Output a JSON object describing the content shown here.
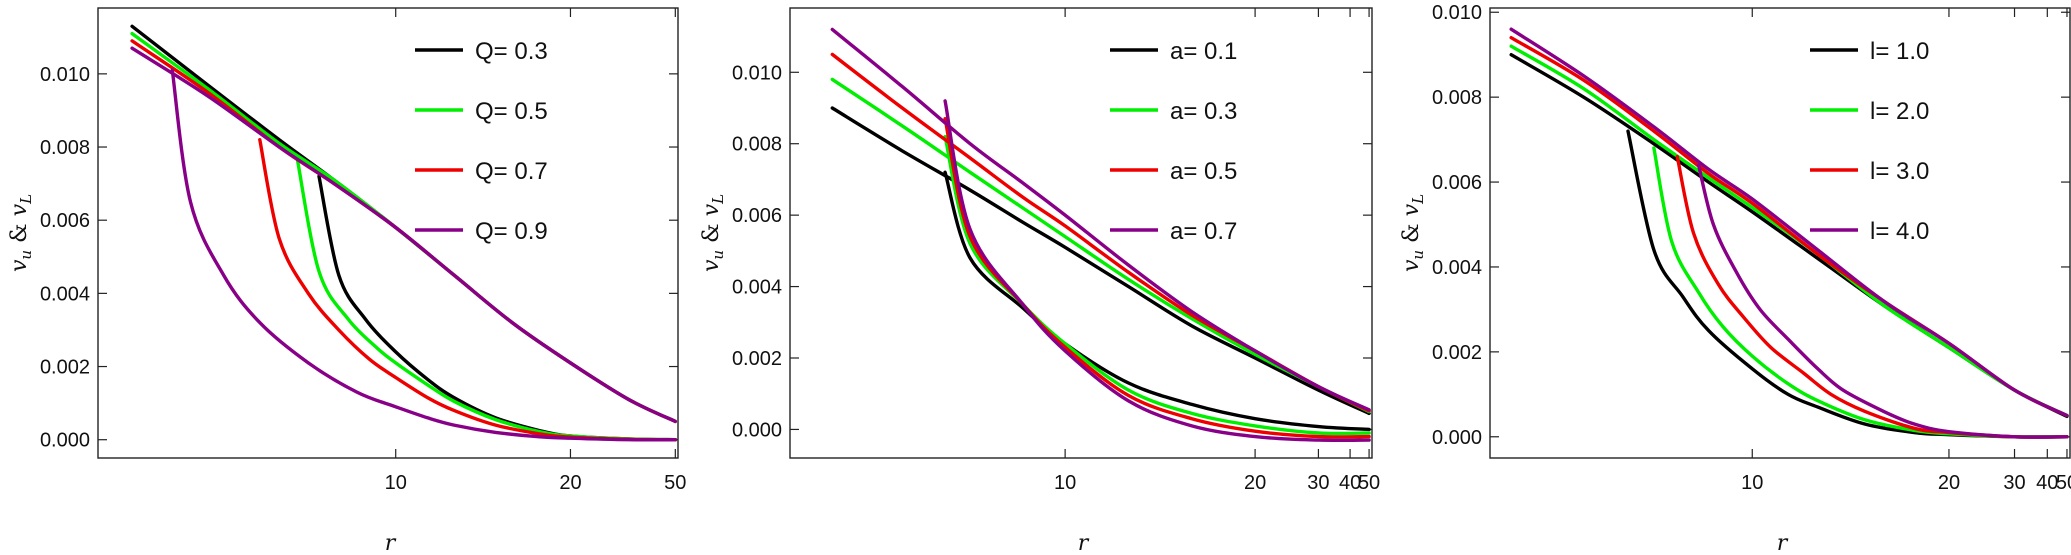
{
  "chart_data": [
    {
      "type": "line",
      "xlabel": "r",
      "ylabel": "v_u & v_L",
      "xscale": "reciprocal",
      "xlim": [
        5.4,
        52
      ],
      "xticks": [
        10,
        20,
        50
      ],
      "ylim": [
        -0.0005,
        0.0118
      ],
      "yticks": [
        0.0,
        0.002,
        0.004,
        0.006,
        0.008,
        0.01
      ],
      "ytick_labels": [
        "0.000",
        "0.002",
        "0.004",
        "0.006",
        "0.008",
        "0.010"
      ],
      "legend_position": "top-right",
      "grid": false,
      "series": [
        {
          "name": "Q= 0.3",
          "color": "#000000",
          "upper": {
            "r": [
              5.7,
              6.5,
              7.5,
              8.5,
              10,
              12,
              15,
              20,
              30,
              50
            ],
            "v": [
              0.0113,
              0.0097,
              0.0082,
              0.0071,
              0.0058,
              0.0045,
              0.0032,
              0.0021,
              0.0011,
              0.0005
            ]
          },
          "lower": {
            "r": [
              8.2,
              8.6,
              9.2,
              10,
              11,
              12,
              14,
              17,
              20,
              30,
              50
            ],
            "v": [
              0.0072,
              0.0045,
              0.0033,
              0.0024,
              0.00165,
              0.00115,
              0.0006,
              0.00025,
              0.0001,
              2e-05,
              0.0
            ]
          }
        },
        {
          "name": "Q= 0.5",
          "color": "#00ee00",
          "upper": {
            "r": [
              5.7,
              6.5,
              7.5,
              8.5,
              10,
              12,
              15,
              20,
              30,
              50
            ],
            "v": [
              0.0111,
              0.0096,
              0.0081,
              0.0071,
              0.0058,
              0.0045,
              0.0032,
              0.0021,
              0.0011,
              0.0005
            ]
          },
          "lower": {
            "r": [
              7.8,
              8.2,
              8.8,
              9.5,
              10,
              11,
              12,
              14,
              17,
              20,
              30,
              50
            ],
            "v": [
              0.0077,
              0.0046,
              0.0033,
              0.0025,
              0.0021,
              0.0015,
              0.00105,
              0.00055,
              0.00022,
              0.0001,
              2e-05,
              0.0
            ]
          }
        },
        {
          "name": "Q= 0.7",
          "color": "#ee0000",
          "upper": {
            "r": [
              5.7,
              6.5,
              7.5,
              8.5,
              10,
              12,
              15,
              20,
              30,
              50
            ],
            "v": [
              0.0109,
              0.0095,
              0.008,
              0.007,
              0.0058,
              0.0045,
              0.0032,
              0.0021,
              0.0011,
              0.0005
            ]
          },
          "lower": {
            "r": [
              7.2,
              7.5,
              8,
              8.6,
              9.3,
              10,
              11,
              12,
              14,
              17,
              20,
              30,
              50
            ],
            "v": [
              0.0082,
              0.0055,
              0.004,
              0.003,
              0.0022,
              0.0017,
              0.00115,
              0.0008,
              0.0004,
              0.00016,
              7e-05,
              1e-05,
              0.0
            ]
          }
        },
        {
          "name": "Q= 0.9",
          "color": "#880088",
          "upper": {
            "r": [
              5.7,
              6.5,
              7.5,
              8.5,
              10,
              12,
              15,
              20,
              30,
              50
            ],
            "v": [
              0.0107,
              0.0094,
              0.008,
              0.007,
              0.0058,
              0.0045,
              0.0032,
              0.0021,
              0.0011,
              0.0005
            ]
          },
          "lower": {
            "r": [
              6.1,
              6.3,
              6.7,
              7.2,
              8,
              9,
              10,
              11,
              12,
              14,
              17,
              20,
              30,
              50
            ],
            "v": [
              0.0101,
              0.0065,
              0.0045,
              0.0032,
              0.0021,
              0.0013,
              0.0009,
              0.0006,
              0.0004,
              0.0002,
              8e-05,
              4e-05,
              0.0,
              0.0
            ]
          }
        }
      ]
    },
    {
      "type": "line",
      "xlabel": "r",
      "ylabel": "v_u & v_L",
      "xscale": "reciprocal",
      "xlim": [
        5.8,
        52
      ],
      "xticks": [
        10,
        20,
        30,
        40,
        50
      ],
      "ylim": [
        -0.0008,
        0.0118
      ],
      "yticks": [
        0.0,
        0.002,
        0.004,
        0.006,
        0.008,
        0.01
      ],
      "ytick_labels": [
        "0.000",
        "0.002",
        "0.004",
        "0.006",
        "0.008",
        "0.010"
      ],
      "legend_position": "top-right",
      "grid": false,
      "series": [
        {
          "name": "a= 0.1",
          "color": "#000000",
          "upper": {
            "r": [
              6.2,
              7,
              8,
              9,
              10,
              12,
              15,
              20,
              30,
              50
            ],
            "v": [
              0.009,
              0.0078,
              0.0067,
              0.0058,
              0.0051,
              0.004,
              0.0029,
              0.002,
              0.0011,
              0.00045
            ]
          },
          "lower": {
            "r": [
              7.6,
              8,
              9,
              10,
              12,
              15,
              20,
              30,
              50
            ],
            "v": [
              0.0072,
              0.0048,
              0.0034,
              0.0024,
              0.0013,
              0.0007,
              0.0003,
              8e-05,
              0.0
            ]
          }
        },
        {
          "name": "a= 0.3",
          "color": "#00ee00",
          "upper": {
            "r": [
              6.2,
              7,
              8,
              9,
              10,
              12,
              15,
              20,
              30,
              50
            ],
            "v": [
              0.0098,
              0.0085,
              0.0072,
              0.0062,
              0.0054,
              0.0042,
              0.0031,
              0.0021,
              0.0012,
              0.0005
            ]
          },
          "lower": {
            "r": [
              7.6,
              8,
              9,
              10,
              12,
              15,
              20,
              30,
              50
            ],
            "v": [
              0.0082,
              0.0052,
              0.0035,
              0.0024,
              0.0011,
              0.00045,
              0.0001,
              -0.0001,
              -0.0001
            ]
          }
        },
        {
          "name": "a= 0.5",
          "color": "#ee0000",
          "upper": {
            "r": [
              6.2,
              7,
              8,
              9,
              10,
              12,
              15,
              20,
              30,
              50
            ],
            "v": [
              0.0105,
              0.009,
              0.0076,
              0.0065,
              0.0057,
              0.0044,
              0.0032,
              0.0022,
              0.0012,
              0.00052
            ]
          },
          "lower": {
            "r": [
              7.6,
              8,
              9,
              10,
              12,
              15,
              20,
              30,
              50
            ],
            "v": [
              0.0087,
              0.0054,
              0.0035,
              0.0023,
              0.00095,
              0.0003,
              -5e-05,
              -0.0002,
              -0.0002
            ]
          }
        },
        {
          "name": "a= 0.7",
          "color": "#880088",
          "upper": {
            "r": [
              6.2,
              7,
              8,
              9,
              10,
              12,
              15,
              20,
              30,
              50
            ],
            "v": [
              0.0112,
              0.0096,
              0.008,
              0.0069,
              0.006,
              0.0046,
              0.0033,
              0.0022,
              0.0012,
              0.00055
            ]
          },
          "lower": {
            "r": [
              7.6,
              8,
              9,
              10,
              12,
              15,
              20,
              30,
              50
            ],
            "v": [
              0.0092,
              0.0056,
              0.0035,
              0.0022,
              0.0008,
              0.0001,
              -0.0002,
              -0.0003,
              -0.0003
            ]
          }
        }
      ]
    },
    {
      "type": "line",
      "xlabel": "r",
      "ylabel": "v_u & v_L",
      "xscale": "reciprocal",
      "xlim": [
        6.0,
        52
      ],
      "xticks": [
        10,
        20,
        30,
        40,
        50
      ],
      "ylim": [
        -0.0005,
        0.0101
      ],
      "yticks": [
        0.0,
        0.002,
        0.004,
        0.006,
        0.008,
        0.01
      ],
      "ytick_labels": [
        "0.000",
        "0.002",
        "0.004",
        "0.006",
        "0.008",
        "0.010"
      ],
      "legend_position": "top-right",
      "grid": false,
      "series": [
        {
          "name": "l= 1.0",
          "color": "#000000",
          "upper": {
            "r": [
              6.2,
              7,
              8,
              9,
              10,
              12,
              15,
              20,
              30,
              50
            ],
            "v": [
              0.009,
              0.008,
              0.0069,
              0.006,
              0.0053,
              0.0042,
              0.0031,
              0.0021,
              0.0011,
              0.00048
            ]
          },
          "lower": {
            "r": [
              7.6,
              8,
              8.5,
              9,
              10,
              11,
              12,
              14,
              17,
              20,
              30,
              50
            ],
            "v": [
              0.0072,
              0.0044,
              0.0033,
              0.0025,
              0.0016,
              0.001,
              0.0007,
              0.0003,
              0.0001,
              5e-05,
              0.0,
              0.0
            ]
          }
        },
        {
          "name": "l= 2.0",
          "color": "#00ee00",
          "upper": {
            "r": [
              6.2,
              7,
              8,
              9,
              10,
              12,
              15,
              20,
              30,
              50
            ],
            "v": [
              0.0092,
              0.0082,
              0.007,
              0.0061,
              0.0054,
              0.0043,
              0.0031,
              0.0021,
              0.0011,
              0.0005
            ]
          },
          "lower": {
            "r": [
              8.0,
              8.3,
              8.8,
              9.3,
              10,
              11,
              12,
              14,
              17,
              20,
              30,
              50
            ],
            "v": [
              0.0068,
              0.0046,
              0.0034,
              0.0026,
              0.0019,
              0.00125,
              0.00085,
              0.0004,
              0.00015,
              7e-05,
              0.0,
              0.0
            ]
          }
        },
        {
          "name": "l= 3.0",
          "color": "#ee0000",
          "upper": {
            "r": [
              6.2,
              7,
              8,
              9,
              10,
              12,
              15,
              20,
              30,
              50
            ],
            "v": [
              0.0094,
              0.0084,
              0.0072,
              0.0062,
              0.0055,
              0.0043,
              0.0032,
              0.0022,
              0.0011,
              0.0005
            ]
          },
          "lower": {
            "r": [
              8.4,
              8.7,
              9.2,
              9.8,
              10.5,
              11.5,
              12.5,
              14,
              17,
              20,
              30,
              50
            ],
            "v": [
              0.0066,
              0.0048,
              0.0036,
              0.0028,
              0.0021,
              0.0015,
              0.001,
              0.0006,
              0.0002,
              0.0001,
              0.0,
              0.0
            ]
          }
        },
        {
          "name": "l= 4.0",
          "color": "#880088",
          "upper": {
            "r": [
              6.2,
              7,
              8,
              9,
              10,
              12,
              15,
              20,
              30,
              50
            ],
            "v": [
              0.0096,
              0.0085,
              0.0073,
              0.0063,
              0.0056,
              0.0044,
              0.0032,
              0.0022,
              0.0011,
              0.0005
            ]
          },
          "lower": {
            "r": [
              8.8,
              9.1,
              9.6,
              10.2,
              11,
              12,
              13,
              15,
              17,
              20,
              30,
              50
            ],
            "v": [
              0.0064,
              0.005,
              0.0039,
              0.003,
              0.0023,
              0.0016,
              0.0011,
              0.0006,
              0.0003,
              0.00012,
              0.0,
              0.0
            ]
          }
        }
      ]
    }
  ]
}
